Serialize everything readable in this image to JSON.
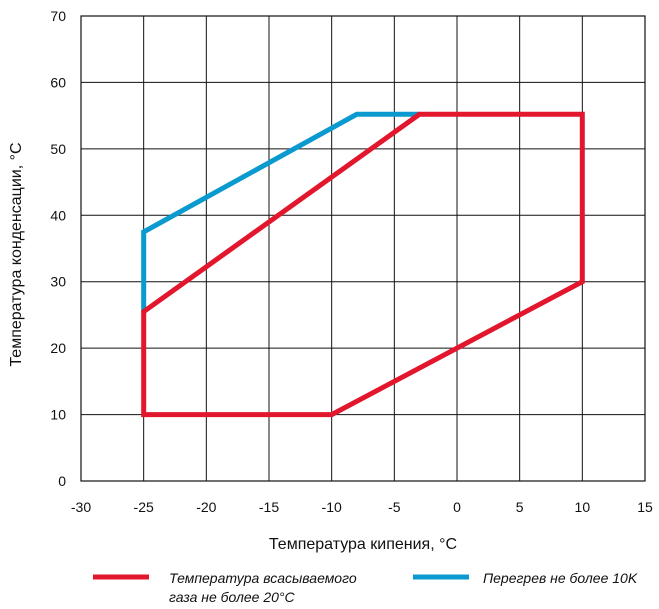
{
  "chart_data": {
    "type": "line",
    "title": "",
    "xlabel": "Температура кипения, °C",
    "ylabel": "Температура конденсации, °C",
    "xlim": [
      -30,
      15
    ],
    "ylim": [
      0,
      70
    ],
    "xticks": [
      -30,
      -25,
      -20,
      -15,
      -10,
      -5,
      0,
      5,
      10,
      15
    ],
    "yticks": [
      0,
      10,
      20,
      30,
      40,
      50,
      60,
      70
    ],
    "grid": true,
    "legend_position": "bottom",
    "series": [
      {
        "name": "Температура всасываемого газа не более 20°C",
        "legend_lines": [
          "Температура всасываемого",
          "газа не более 20°C"
        ],
        "color": "#e2162d",
        "closed": true,
        "x": [
          -25,
          -10,
          10,
          10,
          -3,
          -25,
          -25
        ],
        "y": [
          10,
          10,
          30,
          55.2,
          55.2,
          25.5,
          10
        ]
      },
      {
        "name": "Перегрев не более 10K",
        "legend_lines": [
          "Перегрев не более 10K"
        ],
        "color": "#0a9ad0",
        "closed": false,
        "x": [
          -25,
          -25,
          -8,
          -3
        ],
        "y": [
          25.5,
          37.5,
          55.2,
          55.2
        ]
      }
    ]
  }
}
